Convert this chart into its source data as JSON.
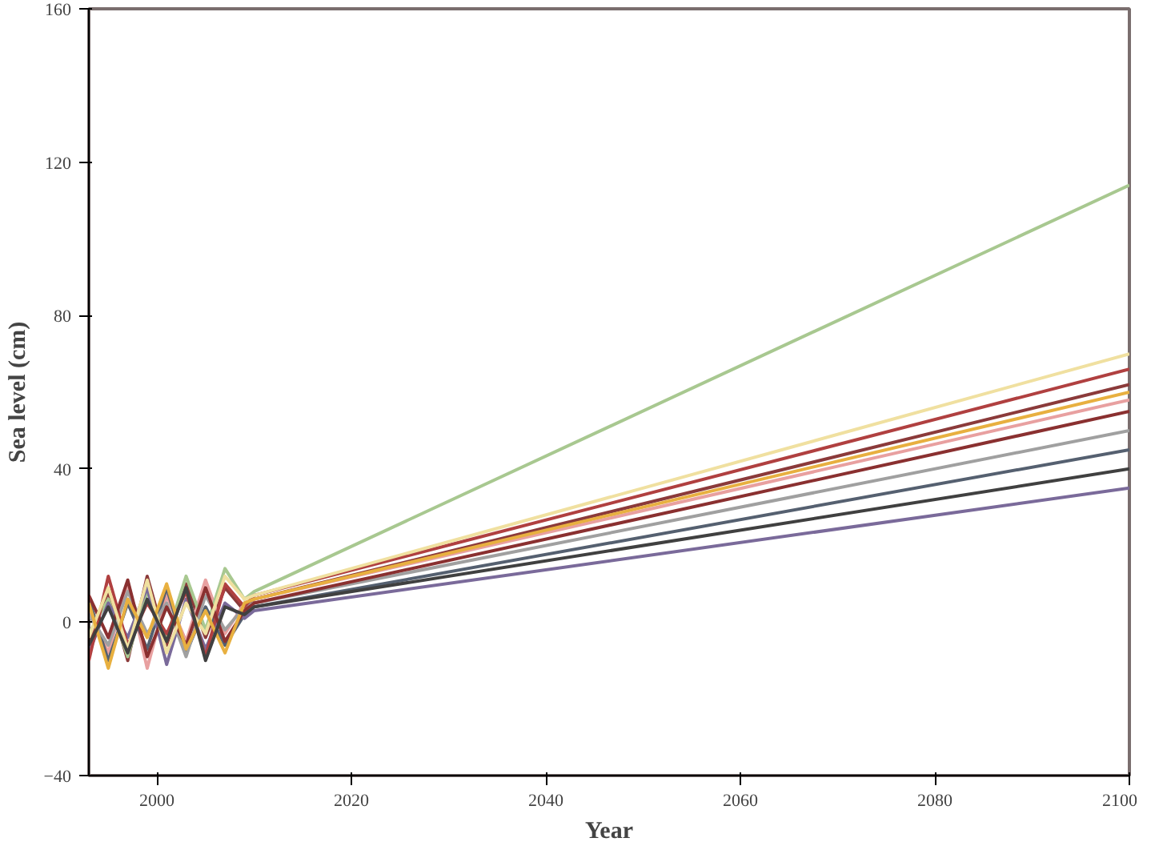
{
  "chart_data": {
    "type": "line",
    "xlabel": "Year",
    "ylabel": "Sea level (cm)",
    "xlim": [
      1993,
      2100
    ],
    "ylim": [
      -40,
      160
    ],
    "xticks": [
      2000,
      2020,
      2040,
      2060,
      2080,
      2100
    ],
    "yticks": [
      -40,
      0,
      40,
      80,
      120,
      160
    ],
    "grid": false,
    "line_style": "solid",
    "marker": "none",
    "x": [
      1993,
      1995,
      1997,
      1999,
      2001,
      2003,
      2005,
      2007,
      2009,
      2010,
      2100
    ],
    "series": [
      {
        "color": "#8b3a3a",
        "values": [
          -5,
          8,
          -10,
          12,
          -6,
          10,
          -4,
          9,
          3,
          6,
          62
        ]
      },
      {
        "color": "#e8a0a0",
        "values": [
          4,
          -8,
          10,
          -12,
          7,
          -5,
          11,
          -3,
          5,
          6,
          58
        ]
      },
      {
        "color": "#a8c890",
        "values": [
          -3,
          6,
          -9,
          8,
          -4,
          12,
          -2,
          14,
          6,
          8,
          114
        ]
      },
      {
        "color": "#556070",
        "values": [
          6,
          -10,
          5,
          -7,
          9,
          -8,
          4,
          -6,
          2,
          4,
          45
        ]
      },
      {
        "color": "#7a6a9a",
        "values": [
          -8,
          5,
          -4,
          9,
          -11,
          6,
          -7,
          5,
          1,
          3,
          35
        ]
      },
      {
        "color": "#a0a0a0",
        "values": [
          2,
          -6,
          8,
          -3,
          5,
          -9,
          7,
          -2,
          4,
          5,
          50
        ]
      },
      {
        "color": "#b04040",
        "values": [
          -10,
          12,
          -6,
          5,
          -3,
          8,
          -9,
          10,
          4,
          7,
          66
        ]
      },
      {
        "color": "#8a3030",
        "values": [
          7,
          -4,
          11,
          -9,
          4,
          -6,
          9,
          -5,
          3,
          5,
          55
        ]
      },
      {
        "color": "#f0e0a0",
        "values": [
          -4,
          9,
          -7,
          11,
          -8,
          5,
          -3,
          12,
          6,
          7,
          70
        ]
      },
      {
        "color": "#e8b040",
        "values": [
          5,
          -12,
          6,
          -4,
          10,
          -7,
          3,
          -8,
          5,
          6,
          60
        ]
      },
      {
        "color": "#404040",
        "values": [
          -6,
          4,
          -8,
          6,
          -5,
          9,
          -10,
          4,
          2,
          4,
          40
        ]
      }
    ]
  }
}
